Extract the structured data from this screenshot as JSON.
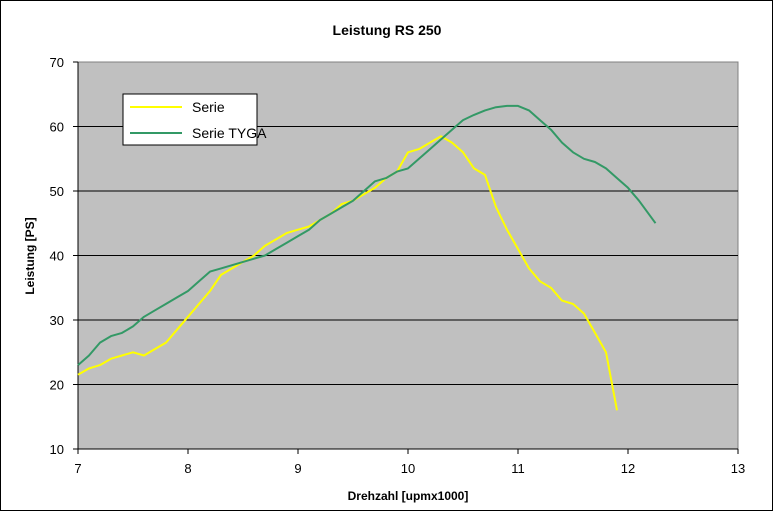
{
  "chart_data": {
    "type": "line",
    "title": "Leistung RS 250",
    "xlabel": "Drehzahl [upmx1000]",
    "ylabel": "Leistung [PS]",
    "xlim": [
      7,
      13
    ],
    "ylim": [
      10,
      70
    ],
    "xticks": [
      "7",
      "8",
      "9",
      "10",
      "11",
      "12",
      "13"
    ],
    "yticks": [
      "10",
      "20",
      "30",
      "40",
      "50",
      "60",
      "70"
    ],
    "grid": "horizontal",
    "plot_background": "#c0c0c0",
    "legend_position": "top-left",
    "series": [
      {
        "name": "Serie",
        "color": "#ffff00",
        "points": [
          [
            7.0,
            21.5
          ],
          [
            7.1,
            22.5
          ],
          [
            7.2,
            23.0
          ],
          [
            7.3,
            24.0
          ],
          [
            7.4,
            24.5
          ],
          [
            7.5,
            25.0
          ],
          [
            7.6,
            24.5
          ],
          [
            7.7,
            25.5
          ],
          [
            7.8,
            26.5
          ],
          [
            7.9,
            28.5
          ],
          [
            8.0,
            30.5
          ],
          [
            8.1,
            32.5
          ],
          [
            8.2,
            34.5
          ],
          [
            8.3,
            37.0
          ],
          [
            8.4,
            38.0
          ],
          [
            8.5,
            39.0
          ],
          [
            8.6,
            40.0
          ],
          [
            8.7,
            41.5
          ],
          [
            8.8,
            42.5
          ],
          [
            8.9,
            43.5
          ],
          [
            9.0,
            44.0
          ],
          [
            9.1,
            44.5
          ],
          [
            9.2,
            45.5
          ],
          [
            9.3,
            46.5
          ],
          [
            9.4,
            48.0
          ],
          [
            9.5,
            48.5
          ],
          [
            9.6,
            49.5
          ],
          [
            9.7,
            50.5
          ],
          [
            9.8,
            52.0
          ],
          [
            9.9,
            53.0
          ],
          [
            10.0,
            56.0
          ],
          [
            10.1,
            56.5
          ],
          [
            10.2,
            57.5
          ],
          [
            10.3,
            58.5
          ],
          [
            10.4,
            57.5
          ],
          [
            10.5,
            56.0
          ],
          [
            10.6,
            53.5
          ],
          [
            10.7,
            52.5
          ],
          [
            10.8,
            47.5
          ],
          [
            10.9,
            44.0
          ],
          [
            11.0,
            41.0
          ],
          [
            11.1,
            38.0
          ],
          [
            11.2,
            36.0
          ],
          [
            11.3,
            35.0
          ],
          [
            11.4,
            33.0
          ],
          [
            11.5,
            32.5
          ],
          [
            11.6,
            31.0
          ],
          [
            11.7,
            28.0
          ],
          [
            11.8,
            25.0
          ],
          [
            11.9,
            16.0
          ]
        ]
      },
      {
        "name": "Serie TYGA",
        "color": "#339966",
        "points": [
          [
            7.0,
            23.0
          ],
          [
            7.1,
            24.5
          ],
          [
            7.2,
            26.5
          ],
          [
            7.3,
            27.5
          ],
          [
            7.4,
            28.0
          ],
          [
            7.5,
            29.0
          ],
          [
            7.6,
            30.5
          ],
          [
            7.7,
            31.5
          ],
          [
            7.8,
            32.5
          ],
          [
            7.9,
            33.5
          ],
          [
            8.0,
            34.5
          ],
          [
            8.1,
            36.0
          ],
          [
            8.2,
            37.5
          ],
          [
            8.3,
            38.0
          ],
          [
            8.4,
            38.5
          ],
          [
            8.5,
            39.0
          ],
          [
            8.6,
            39.5
          ],
          [
            8.7,
            40.0
          ],
          [
            8.8,
            41.0
          ],
          [
            8.9,
            42.0
          ],
          [
            9.0,
            43.0
          ],
          [
            9.1,
            44.0
          ],
          [
            9.2,
            45.5
          ],
          [
            9.3,
            46.5
          ],
          [
            9.4,
            47.5
          ],
          [
            9.5,
            48.5
          ],
          [
            9.6,
            50.0
          ],
          [
            9.7,
            51.5
          ],
          [
            9.8,
            52.0
          ],
          [
            9.9,
            53.0
          ],
          [
            10.0,
            53.5
          ],
          [
            10.1,
            55.0
          ],
          [
            10.2,
            56.5
          ],
          [
            10.3,
            58.0
          ],
          [
            10.4,
            59.5
          ],
          [
            10.5,
            61.0
          ],
          [
            10.6,
            61.8
          ],
          [
            10.7,
            62.5
          ],
          [
            10.8,
            63.0
          ],
          [
            10.9,
            63.2
          ],
          [
            11.0,
            63.2
          ],
          [
            11.1,
            62.5
          ],
          [
            11.2,
            61.0
          ],
          [
            11.3,
            59.5
          ],
          [
            11.4,
            57.5
          ],
          [
            11.5,
            56.0
          ],
          [
            11.6,
            55.0
          ],
          [
            11.7,
            54.5
          ],
          [
            11.8,
            53.5
          ],
          [
            11.9,
            52.0
          ],
          [
            12.0,
            50.5
          ],
          [
            12.1,
            48.5
          ],
          [
            12.25,
            45.0
          ]
        ]
      }
    ]
  }
}
